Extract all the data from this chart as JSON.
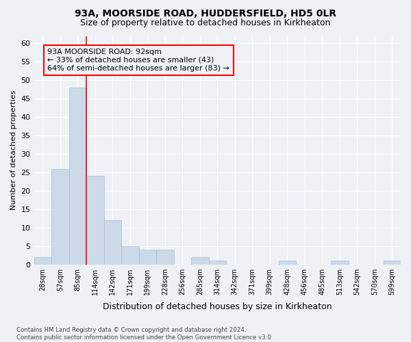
{
  "title1": "93A, MOORSIDE ROAD, HUDDERSFIELD, HD5 0LR",
  "title2": "Size of property relative to detached houses in Kirkheaton",
  "xlabel": "Distribution of detached houses by size in Kirkheaton",
  "ylabel": "Number of detached properties",
  "bar_color": "#ccd9e8",
  "bar_edge_color": "#aabbd0",
  "categories": [
    "28sqm",
    "57sqm",
    "85sqm",
    "114sqm",
    "142sqm",
    "171sqm",
    "199sqm",
    "228sqm",
    "256sqm",
    "285sqm",
    "314sqm",
    "342sqm",
    "371sqm",
    "399sqm",
    "428sqm",
    "456sqm",
    "485sqm",
    "513sqm",
    "542sqm",
    "570sqm",
    "599sqm"
  ],
  "values": [
    2,
    26,
    48,
    24,
    12,
    5,
    4,
    4,
    0,
    2,
    1,
    0,
    0,
    0,
    1,
    0,
    0,
    1,
    0,
    0,
    1
  ],
  "ylim": [
    0,
    62
  ],
  "yticks": [
    0,
    5,
    10,
    15,
    20,
    25,
    30,
    35,
    40,
    45,
    50,
    55,
    60
  ],
  "red_line_x": 2.5,
  "annotation_line1": "93A MOORSIDE ROAD: 92sqm",
  "annotation_line2": "← 33% of detached houses are smaller (43)",
  "annotation_line3": "64% of semi-detached houses are larger (83) →",
  "footer_text": "Contains HM Land Registry data © Crown copyright and database right 2024.\nContains public sector information licensed under the Open Government Licence v3.0.",
  "background_color": "#eef2f7",
  "grid_color": "#ffffff"
}
